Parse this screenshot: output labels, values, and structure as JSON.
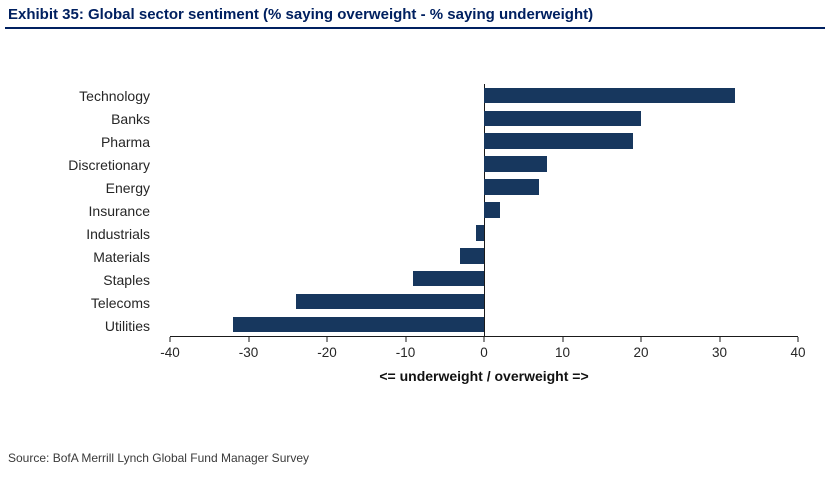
{
  "header": {
    "title": "Exhibit 35: Global sector sentiment (% saying overweight - % saying underweight)"
  },
  "chart_data": {
    "type": "bar",
    "orientation": "horizontal",
    "title": "Exhibit 35: Global sector sentiment (% saying overweight - % saying underweight)",
    "categories": [
      "Technology",
      "Banks",
      "Pharma",
      "Discretionary",
      "Energy",
      "Insurance",
      "Industrials",
      "Materials",
      "Staples",
      "Telecoms",
      "Utilities"
    ],
    "values": [
      32,
      20,
      19,
      8,
      7,
      2,
      -1,
      -3,
      -9,
      -24,
      -32
    ],
    "xlabel": "<= underweight / overweight =>",
    "ylabel": "",
    "xlim": [
      -40,
      40
    ],
    "xticks": [
      -40,
      -30,
      -20,
      -10,
      0,
      10,
      20,
      30,
      40
    ],
    "grid": false,
    "legend": false,
    "bar_color": "#17375e"
  },
  "footer": {
    "source": "Source:  BofA Merrill Lynch Global Fund Manager Survey"
  },
  "colors": {
    "bar": "#17375e",
    "title": "#002060",
    "rule": "#002060",
    "axis": "#1a1a1a",
    "text": "#262626"
  }
}
